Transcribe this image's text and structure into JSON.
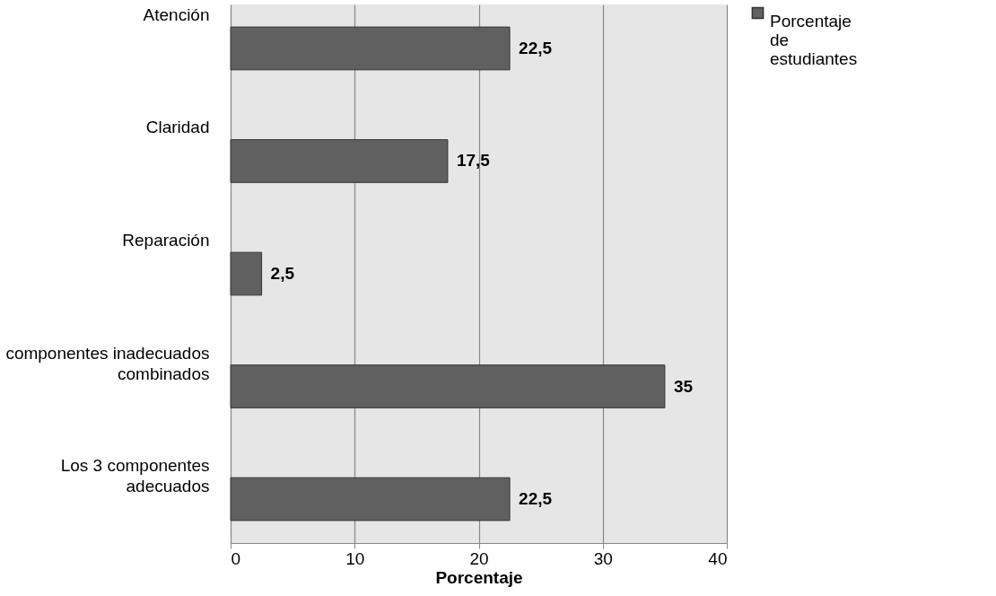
{
  "chart_data": {
    "type": "bar",
    "orientation": "horizontal",
    "xlabel": "Porcentaje",
    "categories": [
      "Atención",
      "Claridad",
      "Reparación",
      "componentes inadecuados combinados",
      "Los 3 componentes adecuados"
    ],
    "series": [
      {
        "name": "Porcentaje de estudiantes",
        "color": "#606060",
        "values": [
          22.5,
          17.5,
          2.5,
          35,
          22.5
        ]
      }
    ],
    "value_labels": [
      "22,5",
      "17,5",
      "2,5",
      "35",
      "22,5"
    ],
    "xlim": [
      0,
      40
    ],
    "xticks": [
      0,
      10,
      20,
      30,
      40
    ],
    "grid": "x",
    "legend": "right"
  }
}
